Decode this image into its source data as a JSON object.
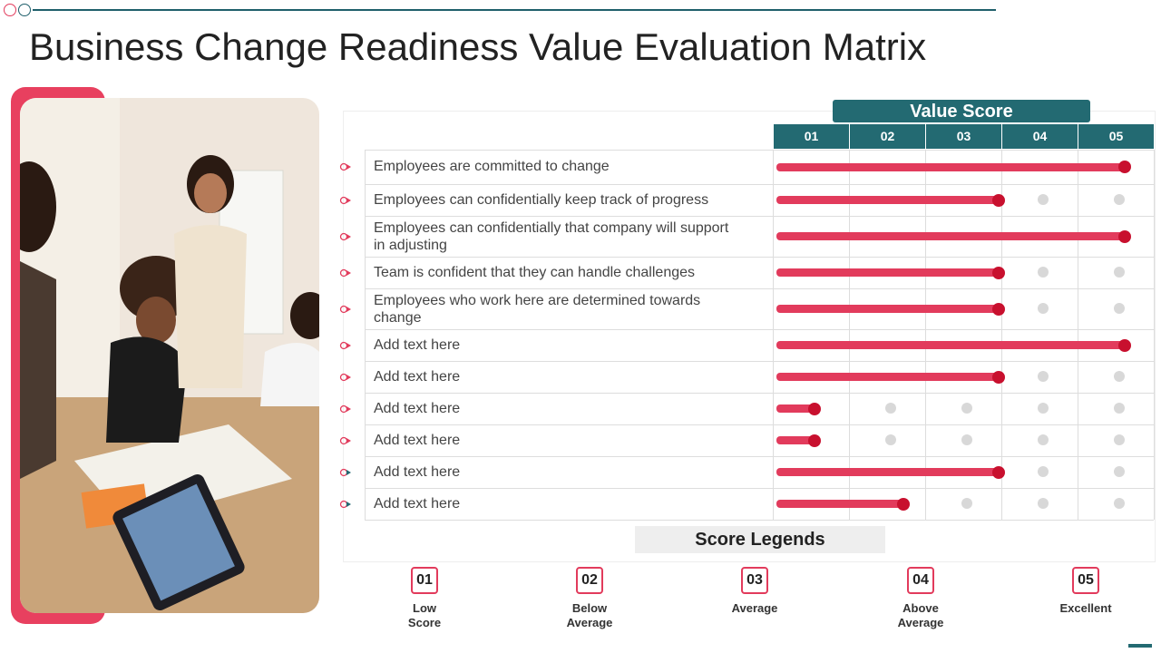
{
  "slide": {
    "title": "Business Change Readiness Value Evaluation Matrix",
    "accent_color": "#e23b5c",
    "header_color": "#236a72"
  },
  "photo": {
    "description_icon": "team-meeting-photo"
  },
  "value_score": {
    "header": "Value Score",
    "columns": [
      "01",
      "02",
      "03",
      "04",
      "05"
    ]
  },
  "rows": [
    {
      "label": "Employees  are committed to change",
      "score": 5
    },
    {
      "label": "Employees can confidentially  keep track of progress",
      "score": 3
    },
    {
      "label": "Employees can confidentially  that company will support in adjusting",
      "score": 5
    },
    {
      "label": "Team is confident that they can handle challenges",
      "score": 3
    },
    {
      "label": "Employees who work here are determined towards change",
      "score": 3
    },
    {
      "label": "Add text here",
      "score": 5
    },
    {
      "label": "Add text here",
      "score": 3
    },
    {
      "label": "Add text here",
      "score": 1
    },
    {
      "label": "Add text here",
      "score": 1
    },
    {
      "label": "Add text here",
      "score": 3
    },
    {
      "label": "Add text here",
      "score": 2
    }
  ],
  "legend": {
    "title": "Score Legends",
    "items": [
      {
        "num": "01",
        "text": "Low\nScore"
      },
      {
        "num": "02",
        "text": "Below\nAverage"
      },
      {
        "num": "03",
        "text": "Average"
      },
      {
        "num": "04",
        "text": "Above\nAverage"
      },
      {
        "num": "05",
        "text": "Excellent"
      }
    ]
  }
}
